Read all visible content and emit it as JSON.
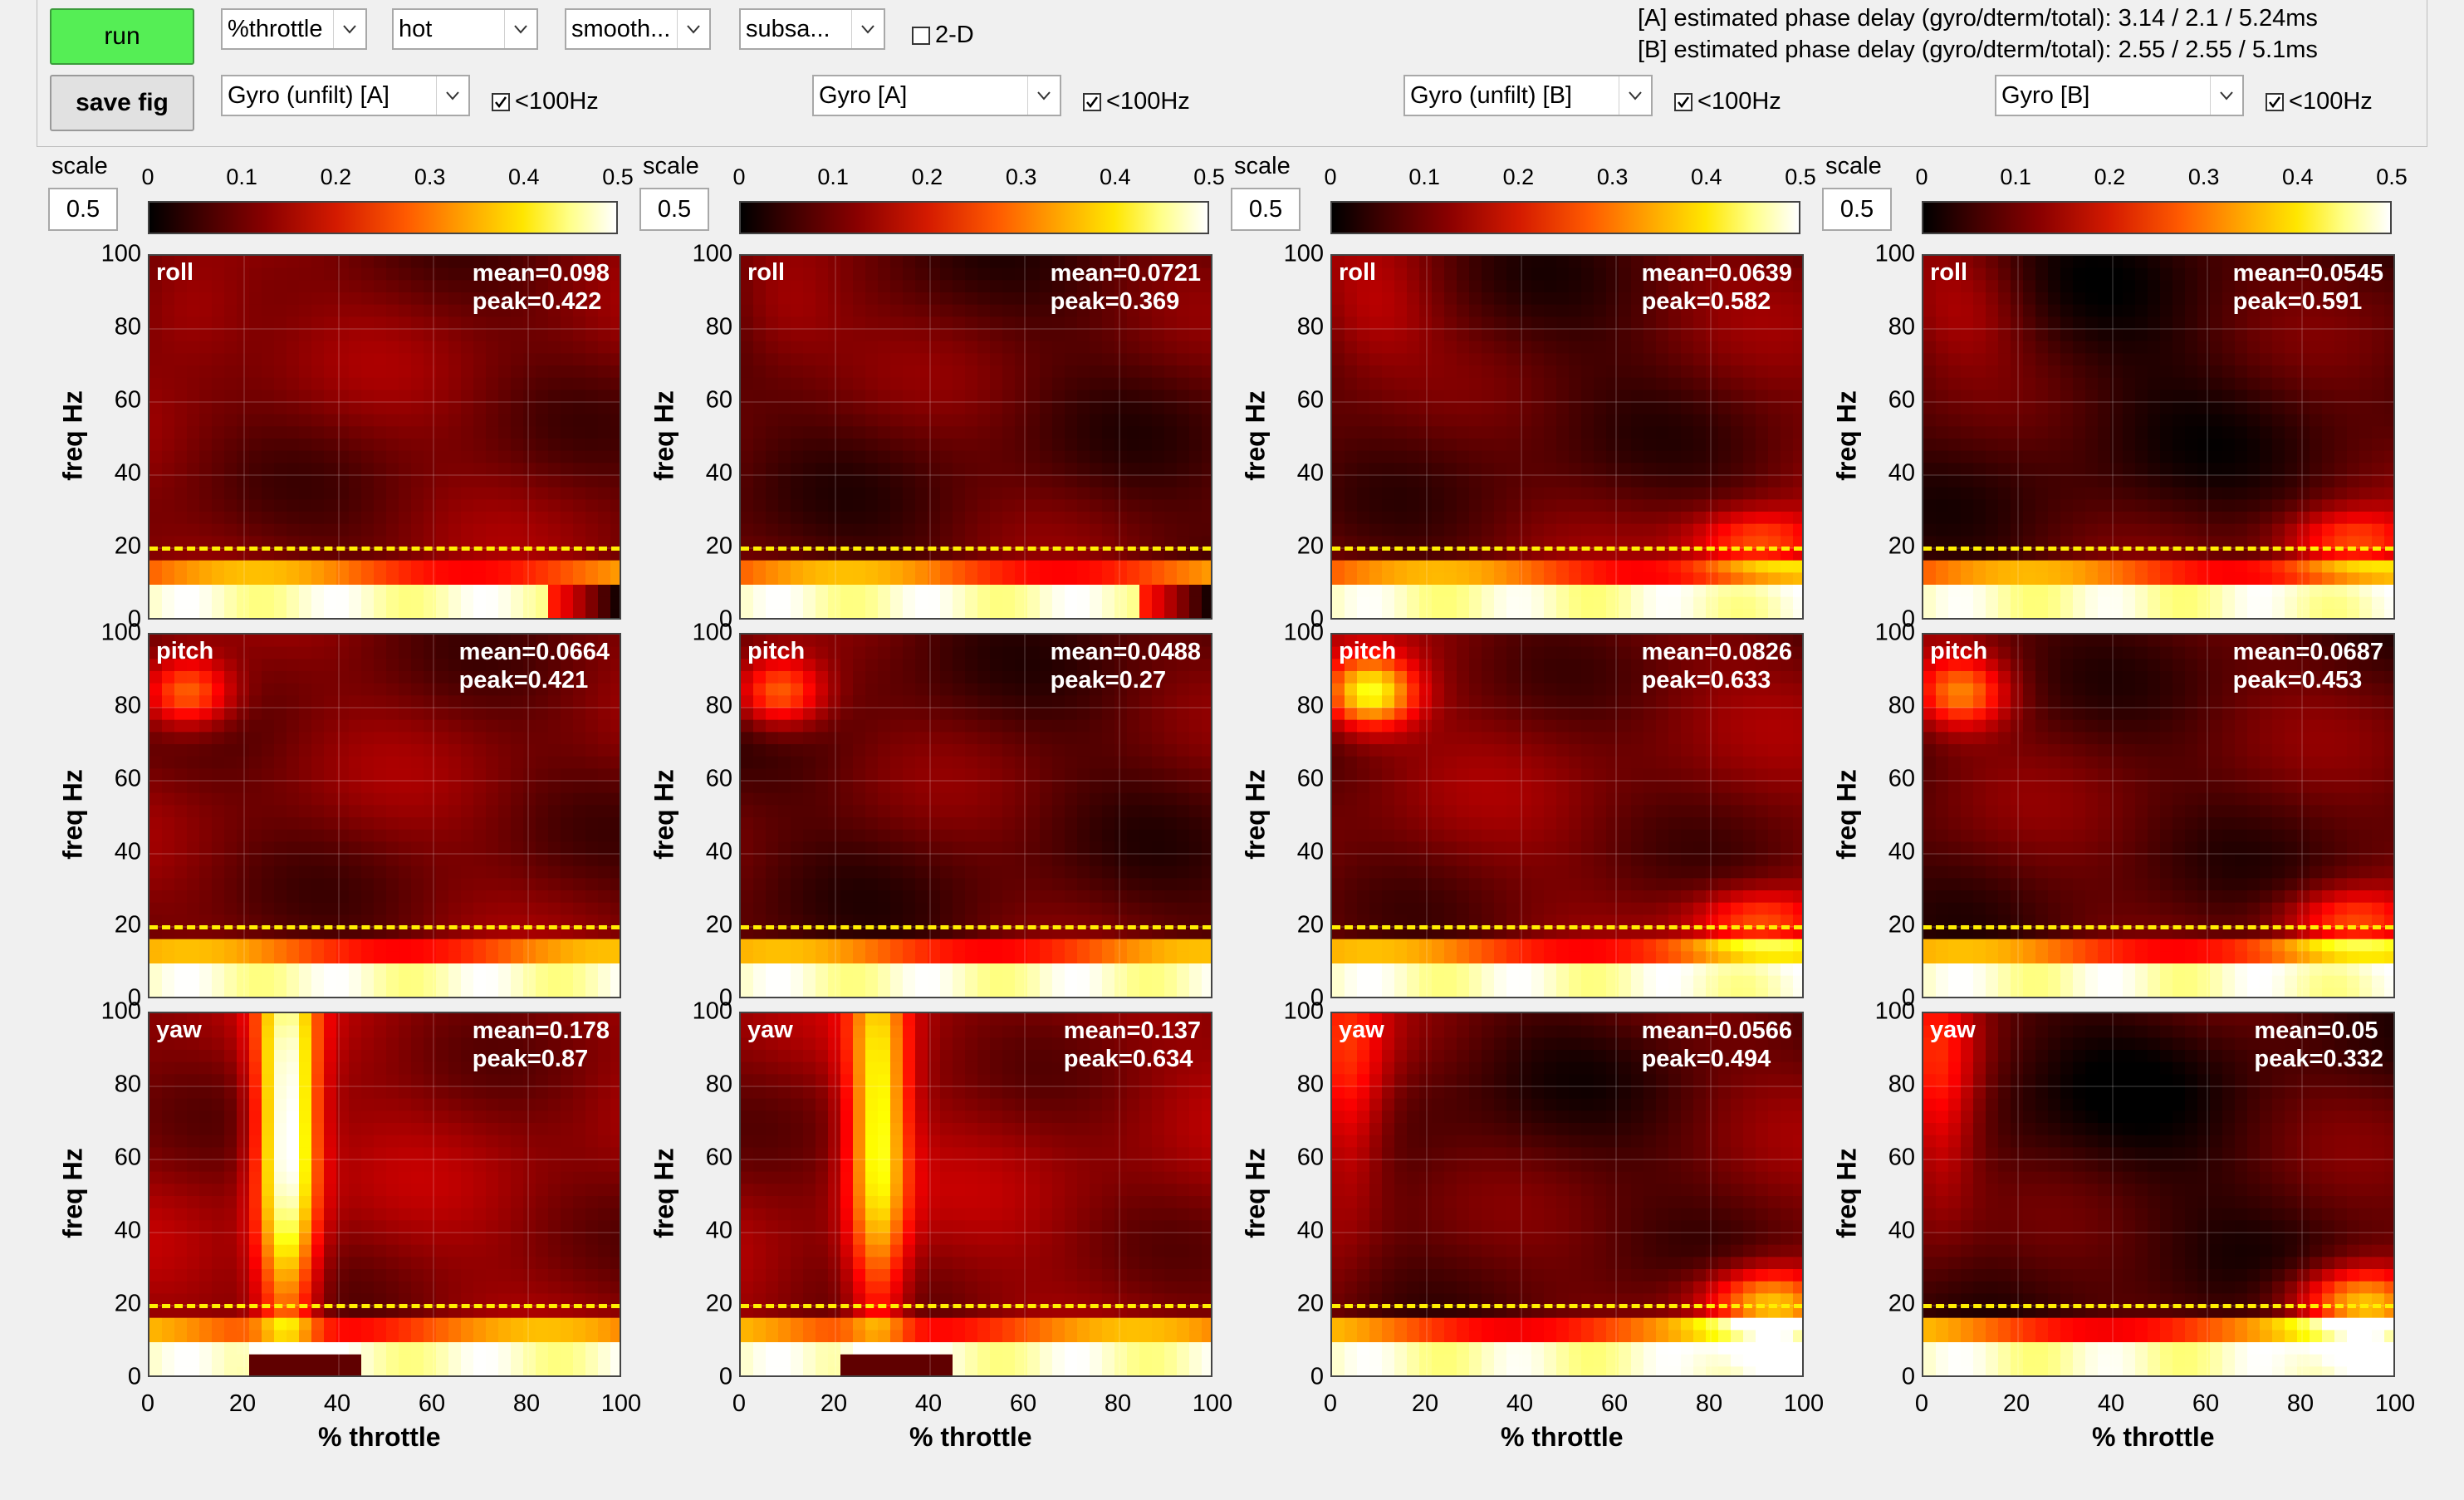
{
  "toolbar": {
    "run_label": "run",
    "save_label": "save fig",
    "dropdown_xaxis": "%throttle",
    "dropdown_colormap": "hot",
    "dropdown_smooth": "smooth...",
    "dropdown_subsample": "subsa...",
    "toggle_2d_label": "2-D",
    "toggle_2d_checked": false,
    "phase_delay_a": "[A] estimated phase delay (gyro/dterm/total): 3.14 / 2.1 / 5.24ms",
    "phase_delay_b": "[B] estimated phase delay (gyro/dterm/total): 2.55 / 2.55 / 5.1ms",
    "panel_selectors": [
      {
        "source": "Gyro (unfilt) [A]",
        "lowpass_label": "<100Hz",
        "lowpass_checked": true
      },
      {
        "source": "Gyro [A]",
        "lowpass_label": "<100Hz",
        "lowpass_checked": true
      },
      {
        "source": "Gyro (unfilt) [B]",
        "lowpass_label": "<100Hz",
        "lowpass_checked": true
      },
      {
        "source": "Gyro [B]",
        "lowpass_label": "<100Hz",
        "lowpass_checked": true
      }
    ]
  },
  "colorbar": {
    "scale_label": "scale",
    "scale_value": "0.5",
    "ticks": [
      "0",
      "0.1",
      "0.2",
      "0.3",
      "0.4",
      "0.5"
    ],
    "colormap": "hot"
  },
  "axes": {
    "ylabel": "freq Hz",
    "xlabel": "% throttle",
    "yticks": [
      "100",
      "80",
      "60",
      "40",
      "20",
      "0"
    ],
    "xticks": [
      "0",
      "20",
      "40",
      "60",
      "80",
      "100"
    ],
    "cutoff_line_hz": 20
  },
  "panels": [
    {
      "title": "Gyro (unfilt) [A]",
      "plots": [
        {
          "axis": "roll",
          "mean": "mean=0.098",
          "peak": "peak=0.422"
        },
        {
          "axis": "pitch",
          "mean": "mean=0.0664",
          "peak": "peak=0.421"
        },
        {
          "axis": "yaw",
          "mean": "mean=0.178",
          "peak": "peak=0.87"
        }
      ]
    },
    {
      "title": "Gyro [A]",
      "plots": [
        {
          "axis": "roll",
          "mean": "mean=0.0721",
          "peak": "peak=0.369"
        },
        {
          "axis": "pitch",
          "mean": "mean=0.0488",
          "peak": "peak=0.27"
        },
        {
          "axis": "yaw",
          "mean": "mean=0.137",
          "peak": "peak=0.634"
        }
      ]
    },
    {
      "title": "Gyro (unfilt) [B]",
      "plots": [
        {
          "axis": "roll",
          "mean": "mean=0.0639",
          "peak": "peak=0.582"
        },
        {
          "axis": "pitch",
          "mean": "mean=0.0826",
          "peak": "peak=0.633"
        },
        {
          "axis": "yaw",
          "mean": "mean=0.0566",
          "peak": "peak=0.494"
        }
      ]
    },
    {
      "title": "Gyro [B]",
      "plots": [
        {
          "axis": "roll",
          "mean": "mean=0.0545",
          "peak": "peak=0.591"
        },
        {
          "axis": "pitch",
          "mean": "mean=0.0687",
          "peak": "peak=0.453"
        },
        {
          "axis": "yaw",
          "mean": "mean=0.05",
          "peak": "peak=0.332"
        }
      ]
    }
  ],
  "chart_data": {
    "type": "heatmap",
    "colormap": "hot",
    "clim": [
      0,
      0.5
    ],
    "xlabel": "% throttle",
    "ylabel": "freq Hz",
    "xlim": [
      0,
      100
    ],
    "ylim": [
      0,
      100
    ],
    "grid": true,
    "reference_line": {
      "y": 20,
      "style": "dashed",
      "color": "#ffee00"
    },
    "panels": [
      {
        "name": "Gyro (unfilt) [A]",
        "plots": [
          {
            "axis": "roll",
            "mean": 0.098,
            "peak": 0.422
          },
          {
            "axis": "pitch",
            "mean": 0.0664,
            "peak": 0.421
          },
          {
            "axis": "yaw",
            "mean": 0.178,
            "peak": 0.87
          }
        ]
      },
      {
        "name": "Gyro [A]",
        "plots": [
          {
            "axis": "roll",
            "mean": 0.0721,
            "peak": 0.369
          },
          {
            "axis": "pitch",
            "mean": 0.0488,
            "peak": 0.27
          },
          {
            "axis": "yaw",
            "mean": 0.137,
            "peak": 0.634
          }
        ]
      },
      {
        "name": "Gyro (unfilt) [B]",
        "plots": [
          {
            "axis": "roll",
            "mean": 0.0639,
            "peak": 0.582
          },
          {
            "axis": "pitch",
            "mean": 0.0826,
            "peak": 0.633
          },
          {
            "axis": "yaw",
            "mean": 0.0566,
            "peak": 0.494
          }
        ]
      },
      {
        "name": "Gyro [B]",
        "plots": [
          {
            "axis": "roll",
            "mean": 0.0545,
            "peak": 0.591
          },
          {
            "axis": "pitch",
            "mean": 0.0687,
            "peak": 0.453
          },
          {
            "axis": "yaw",
            "mean": 0.05,
            "peak": 0.332
          }
        ]
      }
    ]
  }
}
